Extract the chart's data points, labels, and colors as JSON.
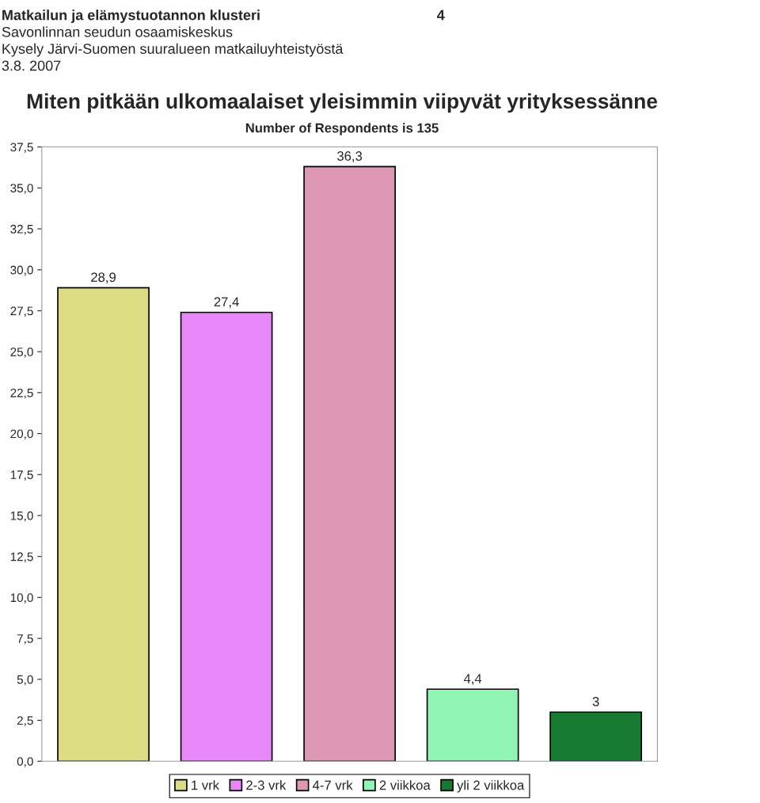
{
  "chart_data": {
    "type": "bar",
    "title": "Miten pitkään ulkomaalaiset yleisimmin viipyvät yrityksessänne",
    "subtitle": "Number of Respondents is 135",
    "annotations": [
      "Matkailun ja elämystuotannon klusteri",
      "4",
      "Savonlinnan seudun osaamiskeskus",
      "Kysely Järvi-Suomen suuralueen matkailuyhteistyöstä",
      "3.8. 2007"
    ],
    "categories": [
      null,
      null,
      null,
      null,
      null
    ],
    "series": [
      {
        "name": "1 vrk",
        "color": "#dcdc82",
        "values": [
          28.9,
          null,
          null,
          null,
          null
        ],
        "value_labels": [
          "28,9",
          null,
          null,
          null,
          null
        ]
      },
      {
        "name": "2-3 vrk",
        "color": "#e888f8",
        "values": [
          null,
          27.4,
          null,
          null,
          null
        ],
        "value_labels": [
          null,
          "27,4",
          null,
          null,
          null
        ]
      },
      {
        "name": "4-7 vrk",
        "color": "#dc98b4",
        "values": [
          null,
          null,
          36.3,
          null,
          null
        ],
        "value_labels": [
          null,
          null,
          "36,3",
          null,
          null
        ]
      },
      {
        "name": "2 viikkoa",
        "color": "#90f4b4",
        "values": [
          null,
          null,
          null,
          4.4,
          null
        ],
        "value_labels": [
          null,
          null,
          null,
          "4,4",
          null
        ]
      },
      {
        "name": "yli 2 viikkoa",
        "color": "#167a30",
        "values": [
          null,
          null,
          null,
          null,
          3
        ],
        "value_labels": [
          null,
          null,
          null,
          null,
          "3"
        ]
      }
    ],
    "ylim": [
      0,
      37.5
    ],
    "yticks": [
      {
        "value": 0,
        "label": "0,0"
      },
      {
        "value": 2.5,
        "label": "2,5"
      },
      {
        "value": 5,
        "label": "5,0"
      },
      {
        "value": 7.5,
        "label": "7,5"
      },
      {
        "value": 10,
        "label": "10,0"
      },
      {
        "value": 12.5,
        "label": "12,5"
      },
      {
        "value": 15,
        "label": "15,0"
      },
      {
        "value": 17.5,
        "label": "17,5"
      },
      {
        "value": 20,
        "label": "20,0"
      },
      {
        "value": 22.5,
        "label": "22,5"
      },
      {
        "value": 25,
        "label": "25,0"
      },
      {
        "value": 27.5,
        "label": "27,5"
      },
      {
        "value": 30,
        "label": "30,0"
      },
      {
        "value": 32.5,
        "label": "32,5"
      },
      {
        "value": 35,
        "label": "35,0"
      },
      {
        "value": 37.5,
        "label": "37,5"
      }
    ],
    "legend": "bottom"
  }
}
